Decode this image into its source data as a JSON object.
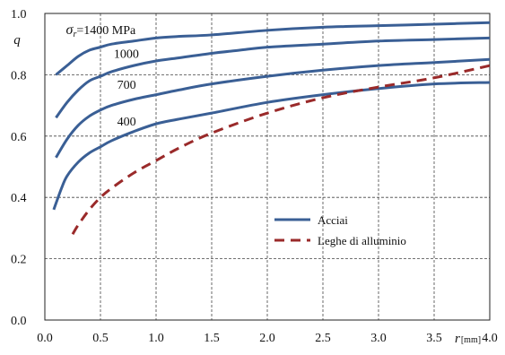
{
  "chart_data": {
    "type": "line",
    "ylabel": "q",
    "xlabel_symbol": "r",
    "xlabel_unit": "[mm]",
    "xlim": [
      0,
      4
    ],
    "ylim": [
      0,
      1
    ],
    "xticks": [
      0,
      0.5,
      1,
      1.5,
      2,
      2.5,
      3,
      3.5,
      4
    ],
    "xtick_labels": [
      "0.0",
      "0.5",
      "1.0",
      "1.5",
      "2.0",
      "2.5",
      "3.0",
      "3.5",
      "4.0"
    ],
    "yticks": [
      0,
      0.2,
      0.4,
      0.6,
      0.8,
      1.0
    ],
    "ytick_labels": [
      "0.0",
      "0.2",
      "0.4",
      "0.6",
      "0.8",
      "1.0"
    ],
    "grid": true,
    "legend_position": "center-right",
    "legend": [
      {
        "label": "Acciai",
        "style": "solid",
        "color": "#3a5f95"
      },
      {
        "label": "Leghe di alluminio",
        "style": "dashed",
        "color": "#9a2a2a"
      }
    ],
    "curve_label_prefix": "σ",
    "curve_label_subscript": "r",
    "curve_label_suffix": "=1400 MPa",
    "series": [
      {
        "label": "1400",
        "group": "Acciai",
        "x": [
          0.1,
          0.2,
          0.3,
          0.4,
          0.5,
          0.6,
          0.8,
          1.0,
          1.2,
          1.5,
          2.0,
          2.5,
          3.0,
          3.5,
          4.0
        ],
        "y": [
          0.8,
          0.83,
          0.86,
          0.88,
          0.89,
          0.9,
          0.91,
          0.92,
          0.925,
          0.93,
          0.945,
          0.955,
          0.96,
          0.965,
          0.97
        ]
      },
      {
        "label": "1000",
        "group": "Acciai",
        "x": [
          0.1,
          0.2,
          0.3,
          0.4,
          0.5,
          0.6,
          0.8,
          1.0,
          1.2,
          1.5,
          1.75,
          2.0,
          2.5,
          3.0,
          3.5,
          4.0
        ],
        "y": [
          0.66,
          0.71,
          0.75,
          0.78,
          0.795,
          0.81,
          0.83,
          0.845,
          0.855,
          0.87,
          0.88,
          0.89,
          0.9,
          0.91,
          0.915,
          0.92
        ]
      },
      {
        "label": "700",
        "group": "Acciai",
        "x": [
          0.1,
          0.2,
          0.3,
          0.4,
          0.5,
          0.6,
          0.8,
          1.0,
          1.2,
          1.5,
          2.0,
          2.5,
          3.0,
          3.5,
          4.0
        ],
        "y": [
          0.53,
          0.59,
          0.635,
          0.665,
          0.685,
          0.7,
          0.72,
          0.735,
          0.75,
          0.77,
          0.795,
          0.815,
          0.83,
          0.84,
          0.85
        ]
      },
      {
        "label": "400",
        "group": "Acciai",
        "x": [
          0.08,
          0.15,
          0.2,
          0.3,
          0.4,
          0.5,
          0.6,
          0.8,
          1.0,
          1.2,
          1.5,
          2.0,
          2.5,
          3.0,
          3.5,
          4.0
        ],
        "y": [
          0.36,
          0.43,
          0.47,
          0.515,
          0.545,
          0.565,
          0.585,
          0.615,
          0.64,
          0.655,
          0.675,
          0.71,
          0.735,
          0.755,
          0.77,
          0.775
        ]
      },
      {
        "label": "",
        "group": "Leghe di alluminio",
        "x": [
          0.25,
          0.3,
          0.4,
          0.5,
          0.6,
          0.8,
          1.0,
          1.2,
          1.5,
          2.0,
          2.5,
          3.0,
          3.5,
          4.0
        ],
        "y": [
          0.28,
          0.31,
          0.36,
          0.4,
          0.43,
          0.48,
          0.52,
          0.56,
          0.61,
          0.675,
          0.725,
          0.76,
          0.79,
          0.83
        ]
      }
    ]
  }
}
